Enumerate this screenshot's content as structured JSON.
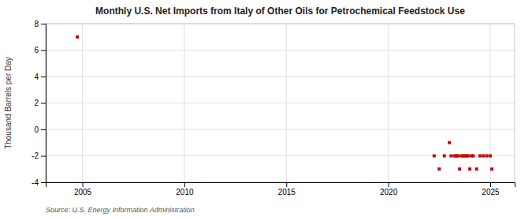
{
  "chart_data": {
    "type": "scatter",
    "title": "Monthly U.S. Net Imports from Italy of Other Oils for Petrochemical Feedstock Use",
    "ylabel": "Thousand Barrels per Day",
    "source": "Source: U.S. Energy Information Administration",
    "x": [
      2004.75,
      2022.25,
      2022.5,
      2022.75,
      2023.0,
      2023.083,
      2023.25,
      2023.333,
      2023.416,
      2023.5,
      2023.583,
      2023.666,
      2023.75,
      2023.833,
      2023.916,
      2024.0,
      2024.083,
      2024.166,
      2024.333,
      2024.5,
      2024.666,
      2024.833,
      2025.0,
      2025.083
    ],
    "values": [
      7.0,
      -2.0,
      -3.0,
      -2.0,
      -1.0,
      -2.0,
      -2.0,
      -2.0,
      -2.0,
      -3.0,
      -2.0,
      -2.0,
      -2.0,
      -2.0,
      -2.0,
      -3.0,
      -2.0,
      -2.0,
      -3.0,
      -2.0,
      -2.0,
      -2.0,
      -2.0,
      -3.0
    ],
    "color": "#cc0000",
    "marker": "square",
    "xlim": [
      2003.2,
      2026.2
    ],
    "ylim": [
      -4,
      8
    ],
    "xticks": [
      2005,
      2010,
      2015,
      2020,
      2025
    ],
    "yticks": [
      -4,
      -2,
      0,
      2,
      4,
      6,
      8
    ],
    "grid": true
  }
}
